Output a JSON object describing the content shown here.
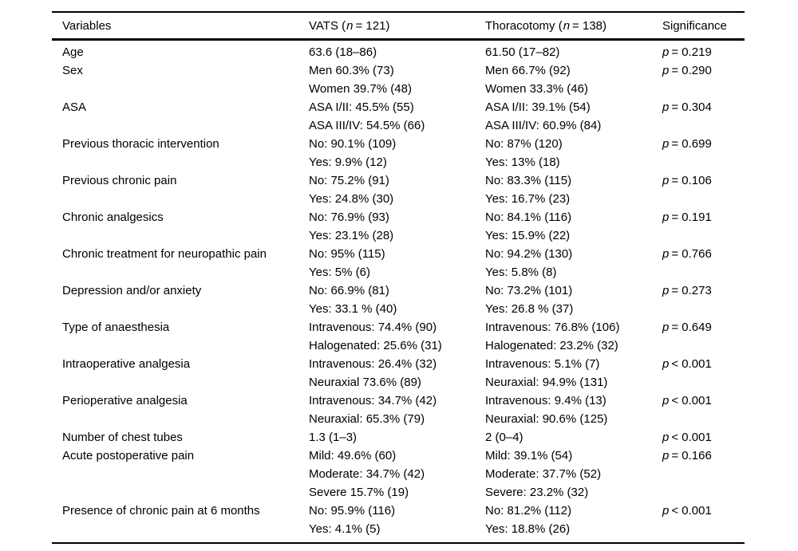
{
  "table": {
    "header": {
      "variables": "Variables",
      "vats": {
        "prefix": "VATS (",
        "n": "n",
        "suffix": "= 121)"
      },
      "thoracotomy": {
        "prefix": "Thoracotomy (",
        "n": "n",
        "suffix": "= 138)"
      },
      "significance": "Significance"
    },
    "rows": [
      {
        "variable": "Age",
        "vats": [
          "63.6 (18–86)"
        ],
        "thoracotomy": [
          "61.50 (17–82)"
        ],
        "p": "p",
        "sig": "= 0.219"
      },
      {
        "variable": "Sex",
        "vats": [
          "Men 60.3% (73)",
          "Women 39.7% (48)"
        ],
        "thoracotomy": [
          "Men 66.7% (92)",
          "Women 33.3% (46)"
        ],
        "p": "p",
        "sig": "= 0.290"
      },
      {
        "variable": "ASA",
        "vats": [
          "ASA I/II: 45.5% (55)",
          "ASA III/IV: 54.5% (66)"
        ],
        "thoracotomy": [
          "ASA I/II: 39.1% (54)",
          "ASA III/IV: 60.9% (84)"
        ],
        "p": "p",
        "sig": "= 0.304"
      },
      {
        "variable": "Previous thoracic intervention",
        "vats": [
          "No: 90.1% (109)",
          "Yes: 9.9% (12)"
        ],
        "thoracotomy": [
          "No: 87% (120)",
          "Yes: 13% (18)"
        ],
        "p": "p",
        "sig": "= 0.699"
      },
      {
        "variable": "Previous chronic pain",
        "vats": [
          "No: 75.2% (91)",
          "Yes: 24.8% (30)"
        ],
        "thoracotomy": [
          "No: 83.3% (115)",
          "Yes: 16.7% (23)"
        ],
        "p": "p",
        "sig": "= 0.106"
      },
      {
        "variable": "Chronic analgesics",
        "vats": [
          "No: 76.9% (93)",
          "Yes: 23.1% (28)"
        ],
        "thoracotomy": [
          "No: 84.1% (116)",
          "Yes: 15.9% (22)"
        ],
        "p": "p",
        "sig": "= 0.191"
      },
      {
        "variable": "Chronic treatment for neuropathic pain",
        "vats": [
          "No: 95% (115)",
          "Yes: 5% (6)"
        ],
        "thoracotomy": [
          "No: 94.2% (130)",
          "Yes: 5.8% (8)"
        ],
        "p": "p",
        "sig": "= 0.766"
      },
      {
        "variable": "Depression and/or anxiety",
        "vats": [
          "No: 66.9% (81)",
          "Yes: 33.1 % (40)"
        ],
        "thoracotomy": [
          "No: 73.2% (101)",
          "Yes: 26.8 % (37)"
        ],
        "p": "p",
        "sig": "= 0.273"
      },
      {
        "variable": "Type of anaesthesia",
        "vats": [
          "Intravenous: 74.4% (90)",
          "Halogenated: 25.6% (31)"
        ],
        "thoracotomy": [
          "Intravenous: 76.8% (106)",
          "Halogenated: 23.2% (32)"
        ],
        "p": "p",
        "sig": "= 0.649"
      },
      {
        "variable": "Intraoperative analgesia",
        "vats": [
          "Intravenous: 26.4% (32)",
          "Neuraxial 73.6% (89)"
        ],
        "thoracotomy": [
          "Intravenous: 5.1% (7)",
          "Neuraxial: 94.9% (131)"
        ],
        "p": "p",
        "sig": "< 0.001"
      },
      {
        "variable": "Perioperative analgesia",
        "vats": [
          "Intravenous: 34.7% (42)",
          "Neuraxial: 65.3% (79)"
        ],
        "thoracotomy": [
          "Intravenous: 9.4% (13)",
          "Neuraxial: 90.6% (125)"
        ],
        "p": "p",
        "sig": "< 0.001"
      },
      {
        "variable": "Number of chest tubes",
        "vats": [
          "1.3 (1–3)"
        ],
        "thoracotomy": [
          "2 (0–4)"
        ],
        "p": "p",
        "sig": "< 0.001"
      },
      {
        "variable": "Acute postoperative pain",
        "vats": [
          "Mild: 49.6% (60)",
          "Moderate: 34.7% (42)",
          "Severe 15.7% (19)"
        ],
        "thoracotomy": [
          "Mild: 39.1% (54)",
          "Moderate: 37.7% (52)",
          "Severe: 23.2% (32)"
        ],
        "p": "p",
        "sig": "= 0.166"
      },
      {
        "variable": "Presence of chronic pain at 6 months",
        "vats": [
          "No: 95.9% (116)",
          "Yes: 4.1% (5)"
        ],
        "thoracotomy": [
          "No: 81.2% (112)",
          "Yes: 18.8% (26)"
        ],
        "p": "p",
        "sig": "< 0.001"
      }
    ]
  }
}
